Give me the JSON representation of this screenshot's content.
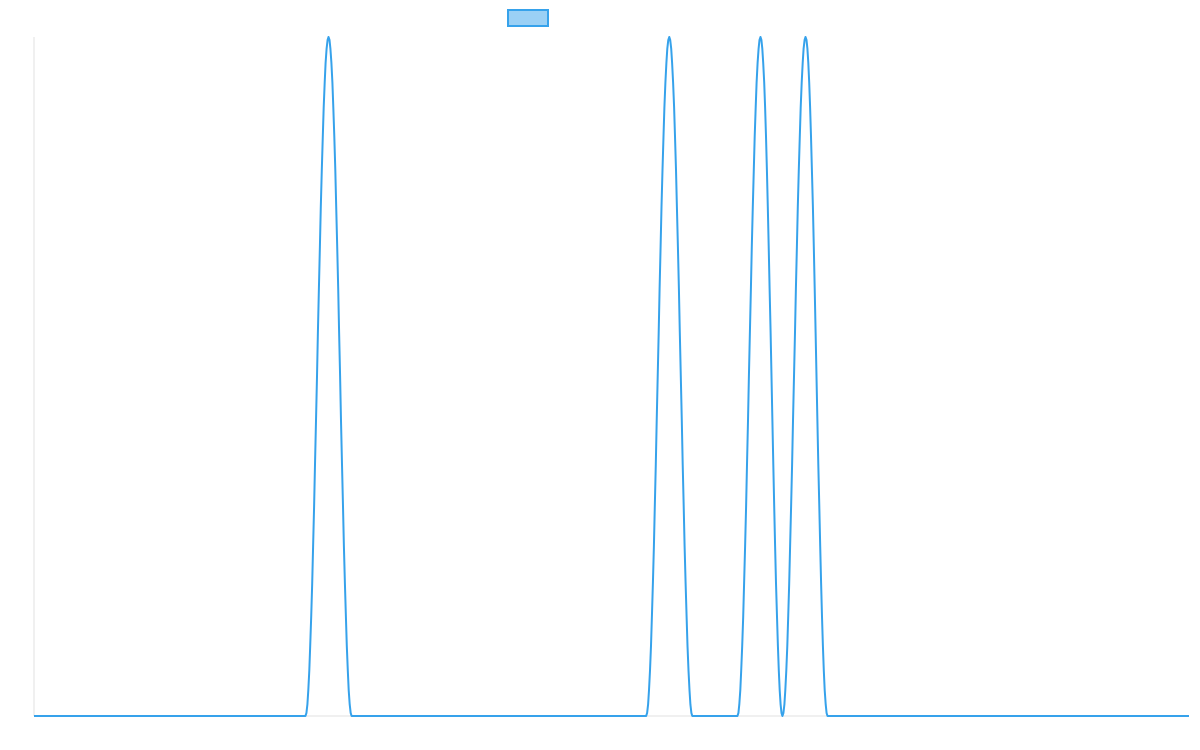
{
  "chart_data": {
    "type": "line",
    "title": "",
    "xlabel": "",
    "ylabel": "",
    "xlim": [
      0,
      1
    ],
    "ylim": [
      0,
      1
    ],
    "grid": false,
    "legend": {
      "placement": "top-center",
      "entries": [
        {
          "label": "",
          "color": "#36a2eb",
          "fill": "#9ad0f5"
        }
      ]
    },
    "series": [
      {
        "color": "#36a2eb",
        "x": [
          0,
          0.235,
          0.255,
          0.275,
          0.53,
          0.55,
          0.57,
          0.609,
          0.629,
          0.648,
          0.668,
          0.687,
          1
        ],
        "y": [
          0,
          0,
          1,
          0,
          0,
          1,
          0,
          0,
          1,
          0,
          1,
          0,
          0
        ]
      }
    ]
  },
  "colors": {
    "line": "#36a2eb",
    "legend_fill": "#9ad0f5",
    "axis": "#e0e0e0"
  }
}
